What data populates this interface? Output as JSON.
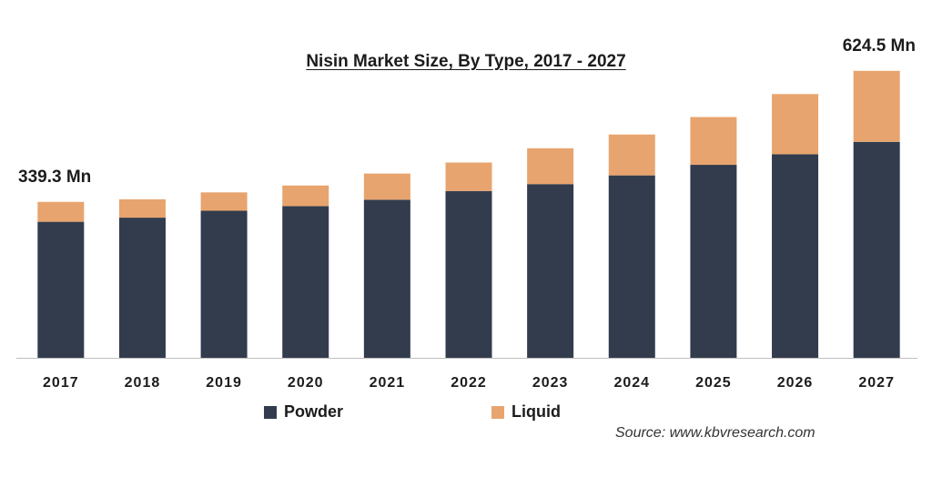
{
  "chart_data": {
    "type": "bar",
    "stacked": true,
    "title": "Nisin Market Size, By Type, 2017 - 2027",
    "categories": [
      "2017",
      "2018",
      "2019",
      "2020",
      "2021",
      "2022",
      "2023",
      "2024",
      "2025",
      "2026",
      "2027"
    ],
    "series": [
      {
        "name": "Powder",
        "color": "#323c4d",
        "values": [
          296,
          305,
          320,
          330,
          344,
          363,
          378,
          397,
          420,
          443,
          470
        ]
      },
      {
        "name": "Liquid",
        "color": "#e8a46e",
        "values": [
          43.3,
          40,
          40,
          45,
          57,
          62,
          78,
          89,
          104,
          131,
          154.5
        ]
      }
    ],
    "data_labels": [
      {
        "category": "2017",
        "text": "339.3 Mn"
      },
      {
        "category": "2027",
        "text": "624.5 Mn"
      }
    ],
    "ylim": [
      0,
      640
    ],
    "legend_position": "bottom",
    "grid": false
  },
  "source": "Source: www.kbvresearch.com"
}
